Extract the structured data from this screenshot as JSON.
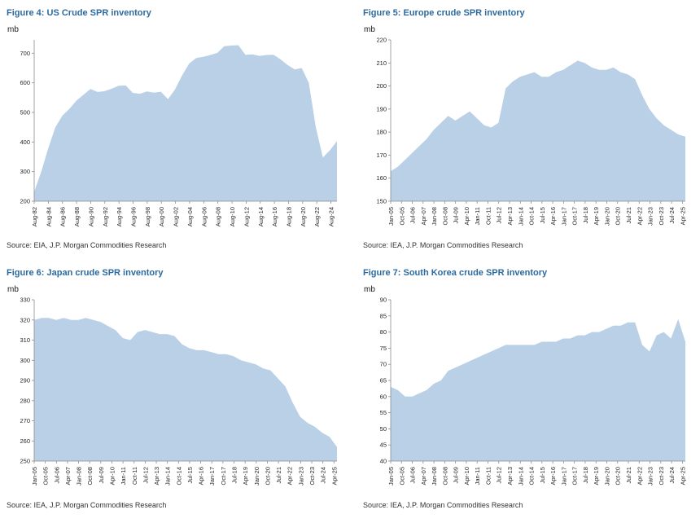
{
  "style": {
    "area_color": "#b9d0e6",
    "title_color": "#2c6aa0",
    "axis_color": "#8c8c8c",
    "tick_text_color": "#262626"
  },
  "chart_data": [
    {
      "type": "area",
      "title": "Figure 4: US Crude SPR inventory",
      "ylabel": "mb",
      "source": "Source: EIA, J.P. Morgan Commodities Research",
      "ylim": [
        200,
        745
      ],
      "yticks": [
        200,
        300,
        400,
        500,
        600,
        700
      ],
      "x_labels": [
        "Aug-82",
        "Aug-84",
        "Aug-86",
        "Aug-88",
        "Aug-90",
        "Aug-92",
        "Aug-94",
        "Aug-96",
        "Aug-98",
        "Aug-00",
        "Aug-02",
        "Aug-04",
        "Aug-06",
        "Aug-08",
        "Aug-10",
        "Aug-12",
        "Aug-14",
        "Aug-16",
        "Aug-18",
        "Aug-20",
        "Aug-22",
        "Aug-24"
      ],
      "xtick_span": 0.98,
      "values": [
        232,
        300,
        379,
        450,
        489,
        512,
        540,
        560,
        579,
        569,
        572,
        580,
        590,
        591,
        566,
        563,
        571,
        567,
        570,
        545,
        578,
        625,
        665,
        684,
        688,
        694,
        701,
        724,
        726,
        727,
        695,
        696,
        691,
        694,
        695,
        679,
        660,
        645,
        650,
        600,
        450,
        348,
        372,
        403
      ]
    },
    {
      "type": "area",
      "title": "Figure 5: Europe crude SPR inventory",
      "ylabel": "mb",
      "source": "Source: IEA, J.P. Morgan Commodities Research",
      "ylim": [
        150,
        220
      ],
      "yticks": [
        150,
        160,
        170,
        180,
        190,
        200,
        210,
        220
      ],
      "x_labels": [
        "Jan-05",
        "Oct-05",
        "Jul-06",
        "Apr-07",
        "Jan-08",
        "Oct-08",
        "Jul-09",
        "Apr-10",
        "Jan-11",
        "Oct-11",
        "Jul-12",
        "Apr-13",
        "Jan-14",
        "Oct-14",
        "Jul-15",
        "Apr-16",
        "Jan-17",
        "Oct-17",
        "Jul-18",
        "Apr-19",
        "Jan-20",
        "Oct-20",
        "Jul-21",
        "Apr-22",
        "Jan-23",
        "Oct-23",
        "Jul-24",
        "Apr-25"
      ],
      "xtick_span": 0.99,
      "values": [
        163,
        165,
        168,
        171,
        174,
        177,
        181,
        184,
        187,
        185,
        187,
        189,
        186,
        183,
        182,
        184,
        199,
        202,
        204,
        205,
        206,
        204,
        204,
        206,
        207,
        209,
        211,
        210,
        208,
        207,
        207,
        208,
        206,
        205,
        203,
        196,
        190,
        186,
        183,
        181,
        179,
        178
      ]
    },
    {
      "type": "area",
      "title": "Figure 6: Japan crude SPR inventory",
      "ylabel": "mb",
      "source": "Source: IEA, J.P. Morgan Commodities Research",
      "ylim": [
        250,
        330
      ],
      "yticks": [
        250,
        260,
        270,
        280,
        290,
        300,
        310,
        320,
        330
      ],
      "x_labels": [
        "Jan-05",
        "Oct-05",
        "Jul-06",
        "Apr-07",
        "Jan-08",
        "Oct-08",
        "Jul-09",
        "Apr-10",
        "Jan-11",
        "Oct-11",
        "Jul-12",
        "Apr-13",
        "Jan-14",
        "Oct-14",
        "Jul-15",
        "Apr-16",
        "Jan-17",
        "Oct-17",
        "Jul-18",
        "Apr-19",
        "Jan-20",
        "Oct-20",
        "Jul-21",
        "Apr-22",
        "Jan-23",
        "Oct-23",
        "Jul-24",
        "Apr-25"
      ],
      "xtick_span": 0.99,
      "values": [
        320,
        321,
        321,
        320,
        321,
        320,
        320,
        321,
        320,
        319,
        317,
        315,
        311,
        310,
        314,
        315,
        314,
        313,
        313,
        312,
        308,
        306,
        305,
        305,
        304,
        303,
        303,
        302,
        300,
        299,
        298,
        296,
        295,
        291,
        287,
        279,
        272,
        269,
        267,
        264,
        262,
        257
      ]
    },
    {
      "type": "area",
      "title": "Figure 7: South Korea crude SPR inventory",
      "ylabel": "mb",
      "source": "Source: IEA, J.P. Morgan Commodities Research",
      "ylim": [
        40,
        90
      ],
      "yticks": [
        40,
        45,
        50,
        55,
        60,
        65,
        70,
        75,
        80,
        85,
        90
      ],
      "x_labels": [
        "Jan-05",
        "Oct-05",
        "Jul-06",
        "Apr-07",
        "Jan-08",
        "Oct-08",
        "Jul-09",
        "Apr-10",
        "Jan-11",
        "Oct-11",
        "Jul-12",
        "Apr-13",
        "Jan-14",
        "Oct-14",
        "Jul-15",
        "Apr-16",
        "Jan-17",
        "Oct-17",
        "Jul-18",
        "Apr-19",
        "Jan-20",
        "Oct-20",
        "Jul-21",
        "Apr-22",
        "Jan-23",
        "Oct-23",
        "Jul-24",
        "Apr-25"
      ],
      "xtick_span": 0.99,
      "values": [
        63,
        62,
        60,
        60,
        61,
        62,
        64,
        65,
        68,
        69,
        70,
        71,
        72,
        73,
        74,
        75,
        76,
        76,
        76,
        76,
        76,
        77,
        77,
        77,
        78,
        78,
        79,
        79,
        80,
        80,
        81,
        82,
        82,
        83,
        83,
        76,
        74,
        79,
        80,
        78,
        84,
        77
      ]
    }
  ]
}
